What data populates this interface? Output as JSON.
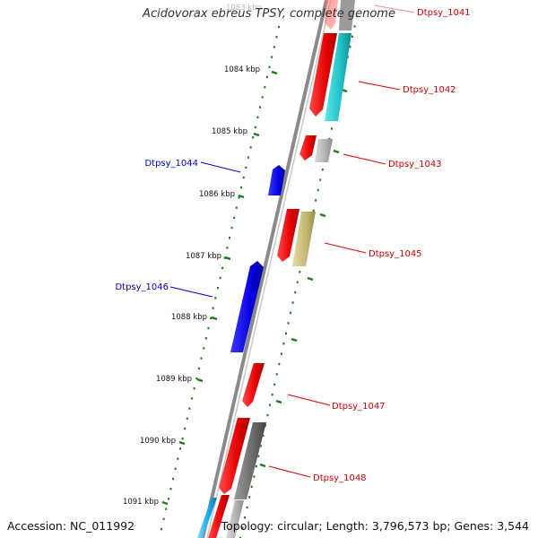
{
  "title": "Acidovorax ebreus TPSY, complete genome",
  "accession_label": "Accession: NC_011992",
  "topology_label": "Topology: circular; Length: 3,796,573 bp; Genes: 3,544",
  "colors": {
    "backbone": "#7a7a7a",
    "tick": "#1e7a1e",
    "label_forward": "#0000cc",
    "label_reverse": "#cc0000",
    "leader_forward": "#0000cc",
    "leader_reverse": "#dd0000"
  },
  "kbp_ticks": [
    "1083 kbp",
    "1084 kbp",
    "1085 kbp",
    "1086 kbp",
    "1087 kbp",
    "1088 kbp",
    "1089 kbp",
    "1090 kbp",
    "1091 kbp"
  ],
  "gene_labels": [
    {
      "name": "Dtpsy_1041",
      "strand": "reverse"
    },
    {
      "name": "Dtpsy_1042",
      "strand": "reverse"
    },
    {
      "name": "Dtpsy_1043",
      "strand": "reverse"
    },
    {
      "name": "Dtpsy_1044",
      "strand": "forward"
    },
    {
      "name": "Dtpsy_1045",
      "strand": "reverse"
    },
    {
      "name": "Dtpsy_1046",
      "strand": "forward"
    },
    {
      "name": "Dtpsy_1047",
      "strand": "reverse"
    },
    {
      "name": "Dtpsy_1048",
      "strand": "reverse"
    }
  ],
  "feature_colors": {
    "gene_forward": "#0a00e6",
    "gene_reverse": "#ee0000",
    "cds_cyan": "#1fc8cc",
    "cds_gray": "#b4b4b4",
    "cds_khaki": "#c9bd7a",
    "cds_dark": "#6e6e6e",
    "cds_blue": "#18a8e8"
  }
}
